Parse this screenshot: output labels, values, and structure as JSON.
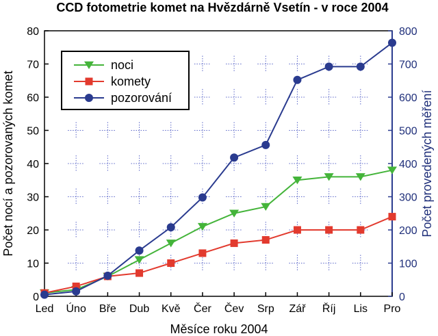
{
  "chart_data": {
    "type": "line",
    "title": "CCD fotometrie komet na Hvězdárně Vsetín - v roce 2004",
    "xlabel": "Měsíce roku 2004",
    "ylabel_left": "Počet nocí a pozorovaných komet",
    "ylabel_right": "Počet provedených měření",
    "categories": [
      "Led",
      "Úno",
      "Bře",
      "Dub",
      "Kvě",
      "Čer",
      "Čev",
      "Srp",
      "Zář",
      "Říj",
      "Lis",
      "Pro"
    ],
    "ylim_left": [
      0,
      80
    ],
    "ylim_right": [
      0,
      800
    ],
    "yticks_left": [
      "0",
      "10",
      "20",
      "30",
      "40",
      "50",
      "60",
      "70",
      "80"
    ],
    "yticks_right": [
      "0",
      "100",
      "200",
      "300",
      "400",
      "500",
      "600",
      "700",
      "800"
    ],
    "grid": "dotted",
    "legend_position": "top-left",
    "series": [
      {
        "name": "noci",
        "axis": "left",
        "marker": "triangle-down",
        "color": "#44b43a",
        "values": [
          1,
          2,
          6,
          11,
          16,
          21,
          25,
          27,
          35,
          36,
          36,
          38
        ]
      },
      {
        "name": "komety",
        "axis": "left",
        "marker": "square",
        "color": "#e23a2e",
        "values": [
          1,
          3,
          6,
          7,
          10,
          13,
          16,
          17,
          20,
          20,
          20,
          24
        ]
      },
      {
        "name": "pozorování",
        "axis": "right",
        "marker": "circle",
        "color": "#2a3b8f",
        "values": [
          5,
          15,
          62,
          138,
          208,
          298,
          418,
          456,
          652,
          692,
          692,
          764
        ]
      }
    ]
  }
}
